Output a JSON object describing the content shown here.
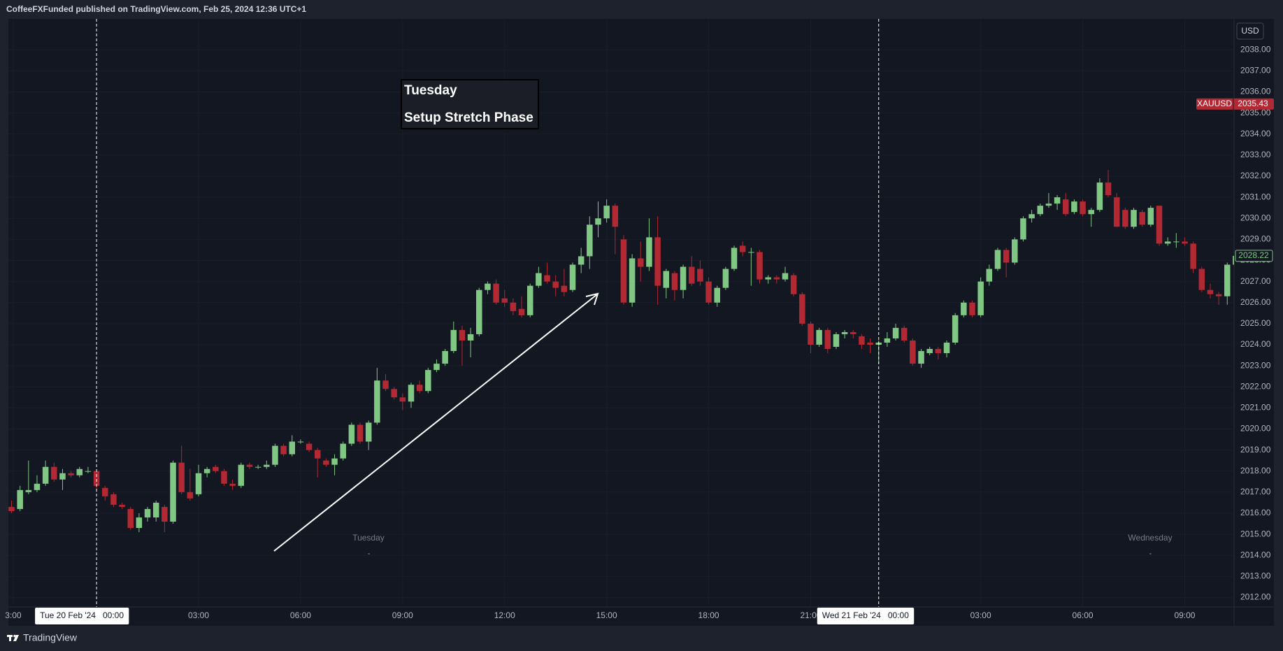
{
  "header": "CoffeeFXFunded published on TradingView.com, Feb 25, 2024 12:36 UTC+1",
  "brand": "TradingView",
  "chart_data": {
    "type": "candlestick",
    "currency": "USD",
    "annotation_box": [
      "Tuesday",
      "Setup Stretch Phase"
    ],
    "session_labels": [
      "Tuesday",
      "Wednesday"
    ],
    "up_color": "#81c784",
    "down_color": "#b22833",
    "grid": true,
    "open": [
      2016.3,
      2016.2,
      2017.0,
      2017.1,
      2017.4,
      2018.2,
      2017.6,
      2017.9,
      2017.8,
      2018.0,
      2018.0,
      2017.2,
      2016.9,
      2016.4,
      2016.2,
      2015.3,
      2015.8,
      2015.8,
      2016.3,
      2015.6,
      2018.4,
      2017.0,
      2016.9,
      2017.9,
      2018.2,
      2018.0,
      2017.4,
      2017.3,
      2018.3,
      2018.2,
      2018.2,
      2018.3,
      2019.2,
      2018.8,
      2019.4,
      2019.3,
      2019.0,
      2018.5,
      2018.3,
      2018.6,
      2019.3,
      2020.2,
      2019.4,
      2020.3,
      2022.3,
      2021.9,
      2021.5,
      2021.3,
      2022.1,
      2021.8,
      2022.8,
      2023.1,
      2023.7,
      2024.7,
      2024.2,
      2024.5,
      2026.6,
      2026.9,
      2026.2,
      2026.0,
      2025.7,
      2025.4,
      2026.8,
      2027.3,
      2027.0,
      2026.8,
      2026.6,
      2027.8,
      2028.2,
      2029.7,
      2030.0,
      2030.6,
      2029.0,
      2026.0,
      2028.1,
      2027.7,
      2029.1,
      2026.7,
      2027.4,
      2026.6,
      2027.7,
      2027.6,
      2027.0,
      2026.0,
      2026.7,
      2027.6,
      2028.7,
      2028.4,
      2028.4,
      2027.1,
      2027.2,
      2027.1,
      2027.3,
      2026.4,
      2025.0,
      2024.0,
      2024.7,
      2023.9,
      2024.5,
      2024.6,
      2024.4,
      2024.1,
      2024.0,
      2024.1,
      2024.3,
      2024.8,
      2024.2,
      2023.1,
      2023.6,
      2023.8,
      2023.6,
      2024.1,
      2025.4,
      2026.0,
      2025.4,
      2027.0,
      2027.6,
      2028.5,
      2027.9,
      2029.0,
      2030.0,
      2030.2,
      2030.6,
      2030.7,
      2030.9,
      2030.3,
      2030.8,
      2030.2,
      2030.4,
      2031.7,
      2031.0,
      2030.4,
      2029.6,
      2030.3,
      2029.7,
      2030.6,
      2028.8,
      2028.9,
      2028.9,
      2028.8,
      2027.6,
      2026.6,
      2026.4,
      2026.3,
      2027.8
    ],
    "high": [
      2016.6,
      2017.3,
      2018.5,
      2017.8,
      2018.5,
      2018.4,
      2018.1,
      2018.0,
      2018.2,
      2018.2,
      2018.1,
      2017.3,
      2017.0,
      2016.5,
      2016.3,
      2016.0,
      2016.3,
      2016.6,
      2016.4,
      2018.5,
      2019.2,
      2018.1,
      2018.3,
      2018.2,
      2018.3,
      2018.1,
      2017.6,
      2018.4,
      2018.4,
      2018.3,
      2018.5,
      2019.3,
      2019.3,
      2019.7,
      2019.5,
      2019.4,
      2019.1,
      2018.6,
      2018.8,
      2019.4,
      2020.3,
      2020.3,
      2020.4,
      2022.9,
      2022.6,
      2022.0,
      2021.7,
      2022.2,
      2022.3,
      2022.9,
      2023.3,
      2023.8,
      2025.1,
      2024.9,
      2024.8,
      2026.7,
      2027.0,
      2027.1,
      2026.6,
      2026.2,
      2026.3,
      2026.9,
      2027.7,
      2027.9,
      2027.3,
      2027.6,
      2027.9,
      2028.6,
      2030.1,
      2030.8,
      2030.9,
      2030.7,
      2029.2,
      2028.3,
      2028.9,
      2030.0,
      2030.1,
      2027.6,
      2027.5,
      2027.8,
      2028.2,
      2028.0,
      2027.2,
      2026.8,
      2027.7,
      2028.7,
      2028.9,
      2028.6,
      2028.5,
      2027.3,
      2027.3,
      2027.7,
      2027.4,
      2026.5,
      2025.1,
      2024.8,
      2024.8,
      2024.6,
      2024.7,
      2024.7,
      2024.5,
      2024.3,
      2024.2,
      2024.6,
      2025.0,
      2024.9,
      2024.3,
      2023.8,
      2023.9,
      2023.9,
      2024.2,
      2025.5,
      2026.1,
      2026.1,
      2027.2,
      2027.8,
      2028.6,
      2028.6,
      2029.1,
      2030.1,
      2030.4,
      2030.7,
      2031.2,
      2031.1,
      2031.2,
      2030.9,
      2030.9,
      2030.5,
      2031.9,
      2032.3,
      2031.2,
      2030.5,
      2030.5,
      2030.4,
      2030.6,
      2030.6,
      2029.1,
      2029.3,
      2029.1,
      2028.9,
      2027.7,
      2026.9,
      2026.5,
      2027.9,
      2028.3
    ],
    "low": [
      2016.0,
      2016.1,
      2016.9,
      2017.0,
      2017.3,
      2017.5,
      2017.1,
      2017.7,
      2017.7,
      2017.9,
      2017.0,
      2016.6,
      2016.3,
      2016.2,
      2015.2,
      2015.1,
      2015.6,
      2015.6,
      2015.1,
      2015.5,
      2016.9,
      2016.6,
      2016.8,
      2017.7,
      2017.9,
      2017.3,
      2017.1,
      2017.2,
      2018.1,
      2018.1,
      2018.1,
      2018.2,
      2018.7,
      2018.7,
      2019.3,
      2018.9,
      2017.7,
      2018.2,
      2017.8,
      2018.5,
      2019.2,
      2019.3,
      2019.0,
      2020.2,
      2021.8,
      2021.4,
      2020.9,
      2021.0,
      2021.7,
      2021.7,
      2022.7,
      2023.0,
      2023.6,
      2023.0,
      2023.4,
      2024.4,
      2026.4,
      2025.9,
      2025.8,
      2025.4,
      2025.3,
      2025.3,
      2026.7,
      2026.9,
      2026.3,
      2026.3,
      2026.5,
      2027.4,
      2027.6,
      2029.1,
      2029.8,
      2028.3,
      2025.9,
      2025.8,
      2027.0,
      2027.5,
      2025.9,
      2026.2,
      2026.1,
      2026.2,
      2026.8,
      2026.8,
      2025.9,
      2025.8,
      2026.6,
      2027.5,
      2028.2,
      2026.8,
      2026.9,
      2026.9,
      2026.9,
      2027.0,
      2026.3,
      2024.9,
      2023.6,
      2023.9,
      2023.6,
      2023.8,
      2024.3,
      2024.3,
      2023.8,
      2023.6,
      2023.1,
      2023.9,
      2024.2,
      2024.1,
      2023.0,
      2022.9,
      2023.5,
      2023.3,
      2023.4,
      2024.0,
      2025.3,
      2025.3,
      2025.3,
      2026.8,
      2027.5,
      2027.2,
      2027.8,
      2028.9,
      2029.8,
      2030.1,
      2030.5,
      2030.4,
      2030.1,
      2030.2,
      2030.1,
      2029.6,
      2030.3,
      2031.0,
      2029.6,
      2029.5,
      2029.5,
      2029.6,
      2029.6,
      2028.7,
      2028.7,
      2028.6,
      2028.7,
      2027.4,
      2026.5,
      2026.2,
      2025.9,
      2025.9,
      2027.7
    ],
    "close": [
      2016.1,
      2017.1,
      2017.1,
      2017.4,
      2018.2,
      2017.6,
      2017.9,
      2017.8,
      2018.1,
      2018.0,
      2017.3,
      2016.8,
      2016.4,
      2016.3,
      2015.3,
      2015.8,
      2016.2,
      2016.5,
      2015.6,
      2018.4,
      2017.0,
      2016.7,
      2017.9,
      2018.1,
      2018.0,
      2017.4,
      2017.3,
      2018.3,
      2018.2,
      2018.2,
      2018.3,
      2019.2,
      2018.8,
      2019.4,
      2019.4,
      2019.0,
      2018.6,
      2018.3,
      2018.6,
      2019.3,
      2020.2,
      2019.4,
      2020.3,
      2022.3,
      2021.9,
      2021.5,
      2021.3,
      2022.1,
      2021.8,
      2022.8,
      2023.1,
      2023.7,
      2024.7,
      2024.2,
      2024.5,
      2026.6,
      2026.9,
      2026.0,
      2026.0,
      2025.6,
      2025.4,
      2026.8,
      2027.4,
      2027.0,
      2026.7,
      2026.5,
      2027.8,
      2028.2,
      2029.7,
      2030.0,
      2030.6,
      2029.6,
      2026.0,
      2028.1,
      2027.7,
      2029.1,
      2026.8,
      2027.5,
      2026.6,
      2027.7,
      2026.9,
      2027.0,
      2026.0,
      2026.7,
      2027.6,
      2028.6,
      2028.4,
      2028.4,
      2027.1,
      2027.2,
      2027.1,
      2027.4,
      2026.4,
      2025.0,
      2024.0,
      2024.7,
      2023.8,
      2024.5,
      2024.6,
      2024.5,
      2024.0,
      2024.0,
      2024.1,
      2024.3,
      2024.8,
      2024.2,
      2023.1,
      2023.7,
      2023.8,
      2023.6,
      2024.1,
      2025.4,
      2026.0,
      2025.4,
      2027.0,
      2027.6,
      2028.5,
      2027.9,
      2029.0,
      2030.0,
      2030.2,
      2030.6,
      2030.7,
      2031.0,
      2030.2,
      2030.8,
      2030.2,
      2030.4,
      2031.7,
      2031.1,
      2029.6,
      2029.6,
      2030.4,
      2029.7,
      2030.5,
      2028.8,
      2028.9,
      2028.9,
      2028.8,
      2027.6,
      2026.6,
      2026.4,
      2026.3,
      2027.8,
      2028.22
    ],
    "xlim": [
      -0.37,
      143.8
    ],
    "xticks": [
      {
        "value": 0.2,
        "label": "3:00"
      },
      {
        "value": 22,
        "label": "03:00"
      },
      {
        "value": 34,
        "label": "06:00"
      },
      {
        "value": 46,
        "label": "09:00"
      },
      {
        "value": 58,
        "label": "12:00"
      },
      {
        "value": 70,
        "label": "15:00"
      },
      {
        "value": 82,
        "label": "18:00"
      },
      {
        "value": 94,
        "label": "21:00"
      },
      {
        "value": 114,
        "label": "03:00"
      },
      {
        "value": 126,
        "label": "06:00"
      },
      {
        "value": 138,
        "label": "09:00"
      }
    ],
    "xmarkers": [
      {
        "value": 10,
        "label": "Tue 20 Feb '24   00:00"
      },
      {
        "value": 102,
        "label": "Wed 21 Feb '24   00:00"
      }
    ],
    "ylim": [
      2011.55,
      2039.47
    ],
    "yticks": [
      {
        "value": 2012,
        "label": "2012.00"
      },
      {
        "value": 2013,
        "label": "2013.00"
      },
      {
        "value": 2014,
        "label": "2014.00"
      },
      {
        "value": 2015,
        "label": "2015.00"
      },
      {
        "value": 2016,
        "label": "2016.00"
      },
      {
        "value": 2017,
        "label": "2017.00"
      },
      {
        "value": 2018,
        "label": "2018.00"
      },
      {
        "value": 2019,
        "label": "2019.00"
      },
      {
        "value": 2020,
        "label": "2020.00"
      },
      {
        "value": 2021,
        "label": "2021.00"
      },
      {
        "value": 2022,
        "label": "2022.00"
      },
      {
        "value": 2023,
        "label": "2023.00"
      },
      {
        "value": 2024,
        "label": "2024.00"
      },
      {
        "value": 2025,
        "label": "2025.00"
      },
      {
        "value": 2026,
        "label": "2026.00"
      },
      {
        "value": 2027,
        "label": "2027.00"
      },
      {
        "value": 2028,
        "label": "2028.00"
      },
      {
        "value": 2029,
        "label": "2029.00"
      },
      {
        "value": 2030,
        "label": "2030.00"
      },
      {
        "value": 2031,
        "label": "2031.00"
      },
      {
        "value": 2032,
        "label": "2032.00"
      },
      {
        "value": 2033,
        "label": "2033.00"
      },
      {
        "value": 2034,
        "label": "2034.00"
      },
      {
        "value": 2035,
        "label": "2035.00"
      },
      {
        "value": 2036,
        "label": "2036.00"
      },
      {
        "value": 2037,
        "label": "2037.00"
      },
      {
        "value": 2038,
        "label": "2038.00"
      }
    ],
    "price_tags": [
      {
        "label": "XAUUSD",
        "value": 2035.43,
        "color": "#b22833"
      },
      {
        "value": 2028.22,
        "color": "#81c784"
      }
    ]
  }
}
